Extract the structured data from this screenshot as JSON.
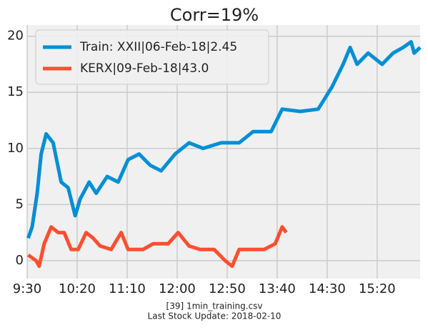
{
  "chart_data": {
    "type": "line",
    "title": "Corr=19%",
    "series": [
      {
        "name": "Train: XXII|06-Feb-18|2.45",
        "color": "#008fd5",
        "x": [
          571,
          575,
          580,
          584,
          589,
          596,
          604,
          611,
          618,
          623,
          632,
          639,
          650,
          661,
          671,
          682,
          693,
          704,
          718,
          732,
          746,
          764,
          782,
          796,
          814,
          825,
          843,
          861,
          875,
          886,
          893,
          900,
          911,
          925,
          936,
          946,
          954,
          957,
          963
        ],
        "values": [
          2,
          3,
          6,
          9.5,
          11.3,
          10.5,
          7,
          6.5,
          4,
          5.5,
          7,
          6,
          7.5,
          7,
          9,
          9.5,
          8.5,
          8,
          9.5,
          10.5,
          10,
          10.5,
          10.5,
          11.5,
          11.5,
          13.5,
          13.3,
          13.5,
          15.5,
          17.5,
          19,
          17.5,
          18.5,
          17.5,
          18.5,
          19,
          19.5,
          18.5,
          19
        ]
      },
      {
        "name": "KERX|09-Feb-18|43.0",
        "color": "#fc4f30",
        "x": [
          571,
          579,
          582,
          587,
          594,
          601,
          607,
          614,
          621,
          629,
          636,
          643,
          654,
          664,
          671,
          686,
          696,
          711,
          721,
          732,
          743,
          757,
          768,
          775,
          782,
          793,
          807,
          818,
          825,
          829
        ],
        "values": [
          0.5,
          0,
          -0.5,
          1.5,
          3,
          2.5,
          2.5,
          1,
          1,
          2.5,
          2,
          1.3,
          1,
          2.5,
          1,
          1,
          1.5,
          1.5,
          2.5,
          1.3,
          1,
          1,
          0,
          -0.5,
          1,
          1,
          1,
          1.5,
          3,
          2.5
        ]
      }
    ],
    "xlim": [
      570,
      963
    ],
    "xticks": [
      {
        "value": 570,
        "label": "9:30"
      },
      {
        "value": 620,
        "label": "10:20"
      },
      {
        "value": 670,
        "label": "11:10"
      },
      {
        "value": 720,
        "label": "12:00"
      },
      {
        "value": 770,
        "label": "12:50"
      },
      {
        "value": 820,
        "label": "13:40"
      },
      {
        "value": 870,
        "label": "14:30"
      },
      {
        "value": 920,
        "label": "15:20"
      }
    ],
    "ylim": [
      -1.6,
      21
    ],
    "yticks": [
      0,
      5,
      10,
      15,
      20
    ],
    "grid": true,
    "legend": "upper left",
    "notes": [
      "[39] 1min_training.csv",
      "Last Stock Update: 2018-02-10"
    ]
  }
}
